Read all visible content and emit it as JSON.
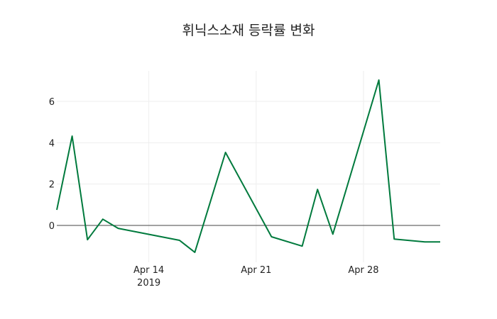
{
  "chart_data": {
    "type": "line",
    "title": "휘닉스소재 등락률 변화",
    "xlabel": "",
    "ylabel": "",
    "x": [
      "2019-04-08",
      "2019-04-09",
      "2019-04-10",
      "2019-04-11",
      "2019-04-12",
      "2019-04-16",
      "2019-04-17",
      "2019-04-19",
      "2019-04-22",
      "2019-04-24",
      "2019-04-25",
      "2019-04-26",
      "2019-04-29",
      "2019-04-30",
      "2019-05-02",
      "2019-05-03"
    ],
    "series": [
      {
        "name": "등락률",
        "color": "#007a3d",
        "values": [
          0.75,
          4.32,
          -0.69,
          0.3,
          -0.14,
          -0.72,
          -1.3,
          3.53,
          -0.55,
          -1.0,
          1.74,
          -0.42,
          7.03,
          -0.66,
          -0.8,
          -0.8
        ]
      }
    ],
    "y_ticks": [
      0,
      2,
      4,
      6
    ],
    "x_ticks": [
      {
        "label": "Apr 14",
        "sublabel": "2019",
        "date": "2019-04-14"
      },
      {
        "label": "Apr 21",
        "sublabel": "",
        "date": "2019-04-21"
      },
      {
        "label": "Apr 28",
        "sublabel": "",
        "date": "2019-04-28"
      }
    ],
    "ylim": [
      -1.6,
      7.5
    ],
    "xlim": [
      "2019-04-08",
      "2019-05-03"
    ],
    "grid": true,
    "legend": "none"
  }
}
